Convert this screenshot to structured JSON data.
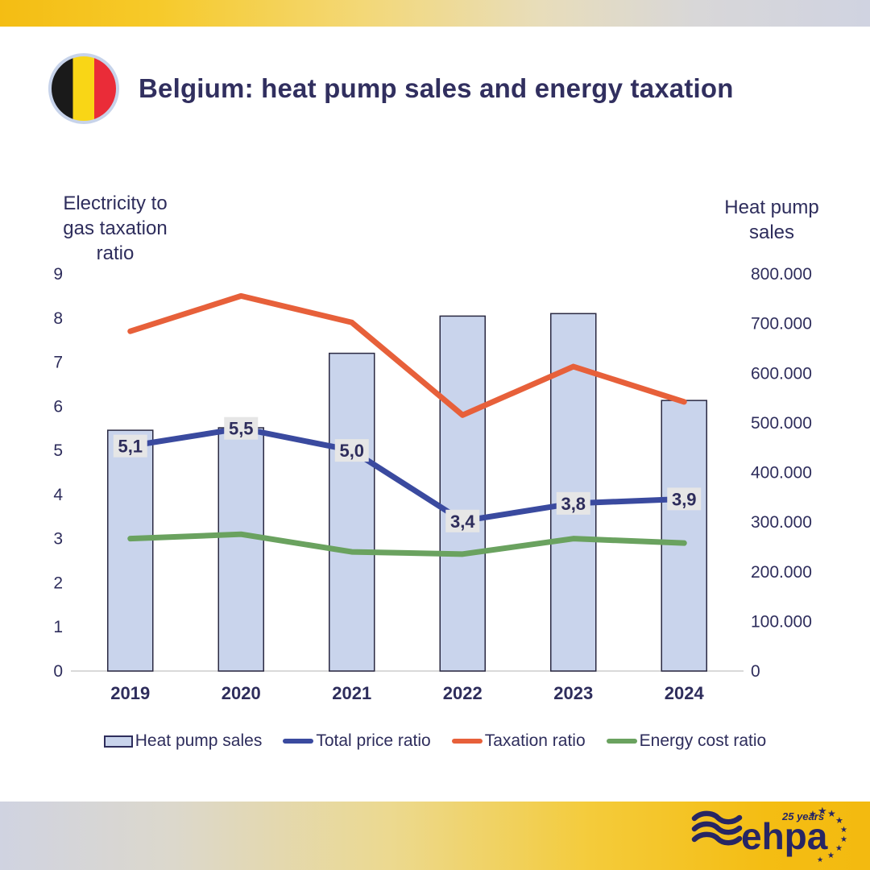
{
  "header": {
    "title": "Belgium: heat pump sales and energy taxation",
    "flag": "belgium-flag"
  },
  "chart_data": {
    "type": "bar",
    "subtype": "combo-bar-line",
    "categories": [
      "2019",
      "2020",
      "2021",
      "2022",
      "2023",
      "2024"
    ],
    "bar_series": {
      "name": "Heat pump sales",
      "axis": "right",
      "values": [
        485000,
        490000,
        640000,
        715000,
        720000,
        545000
      ],
      "fill": "#c9d4ec",
      "stroke": "#2a2942"
    },
    "line_series": [
      {
        "name": "Total price ratio",
        "axis": "left",
        "values": [
          5.1,
          5.5,
          5.0,
          3.4,
          3.8,
          3.9
        ],
        "point_labels": [
          "5,1",
          "5,5",
          "5,0",
          "3,4",
          "3,8",
          "3,9"
        ],
        "color": "#3a4a9f"
      },
      {
        "name": "Taxation ratio",
        "axis": "left",
        "values": [
          7.7,
          8.5,
          7.9,
          5.8,
          6.9,
          6.1
        ],
        "point_labels": [],
        "color": "#e7603a"
      },
      {
        "name": "Energy cost ratio",
        "axis": "left",
        "values": [
          3.0,
          3.1,
          2.7,
          2.65,
          3.0,
          2.9
        ],
        "point_labels": [],
        "color": "#6aa25f"
      }
    ],
    "left_axis": {
      "title": "Electricity to\ngas taxation\nratio",
      "tick_labels": [
        "0",
        "1",
        "2",
        "3",
        "4",
        "5",
        "6",
        "7",
        "8",
        "9"
      ],
      "range": [
        0,
        9
      ]
    },
    "right_axis": {
      "title": "Heat pump\nsales",
      "tick_labels": [
        "0",
        "100.000",
        "200.000",
        "300.000",
        "400.000",
        "500.000",
        "600.000",
        "700.000",
        "800.000"
      ],
      "range": [
        0,
        800000
      ]
    },
    "label_box_color": "#e6e6e6",
    "label_text_color": "#2e2d5c",
    "axis_line_color": "#d9d9d9",
    "tick_text_color": "#2e2d5c",
    "grid": false,
    "legend_position": "bottom"
  },
  "legend": {
    "items": [
      {
        "label": "Heat pump sales",
        "swatch": "bar",
        "color": "#c9d4ec"
      },
      {
        "label": "Total price ratio",
        "swatch": "line",
        "color": "#3a4a9f"
      },
      {
        "label": "Taxation ratio",
        "swatch": "line",
        "color": "#e7603a"
      },
      {
        "label": "Energy cost ratio",
        "swatch": "line",
        "color": "#6aa25f"
      }
    ]
  },
  "footer": {
    "logo_text": "ehpa",
    "badge": "25 years"
  }
}
